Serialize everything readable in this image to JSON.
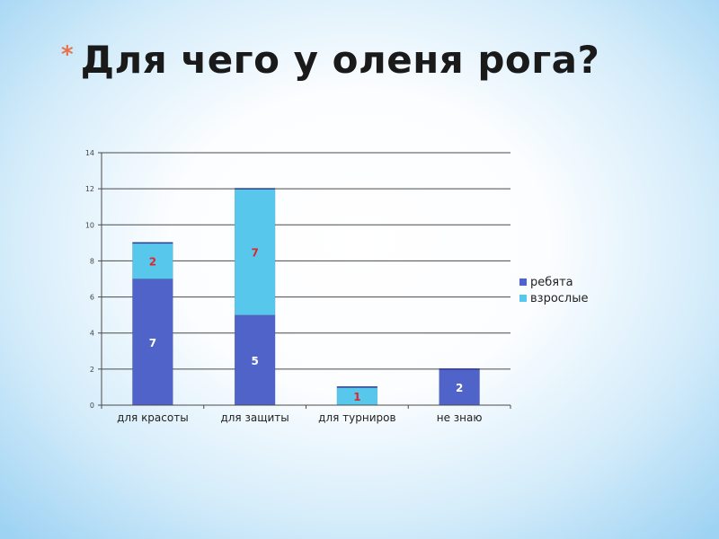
{
  "slide": {
    "bullet": "*",
    "title": "Для чего у оленя рога?"
  },
  "chart_data": {
    "type": "bar",
    "stacked": true,
    "title": "",
    "xlabel": "",
    "ylabel": "",
    "categories": [
      "для красоты",
      "для защиты",
      "для турниров",
      "не знаю"
    ],
    "ylim": [
      0,
      14
    ],
    "yticks": [
      "0",
      "2",
      "4",
      "6",
      "8",
      "10",
      "12",
      "14"
    ],
    "grid": true,
    "legend": "right",
    "series": [
      {
        "name": "ребята",
        "color": "#4f63c8",
        "values": [
          7,
          5,
          0,
          2
        ],
        "labels": [
          "7",
          "5",
          "",
          "2"
        ],
        "label_color": "#ffffff"
      },
      {
        "name": "взрослые",
        "color": "#57c8ec",
        "values": [
          2,
          7,
          1,
          0
        ],
        "labels": [
          "2",
          "7",
          "1",
          ""
        ],
        "label_color": "#e0252b"
      }
    ]
  }
}
